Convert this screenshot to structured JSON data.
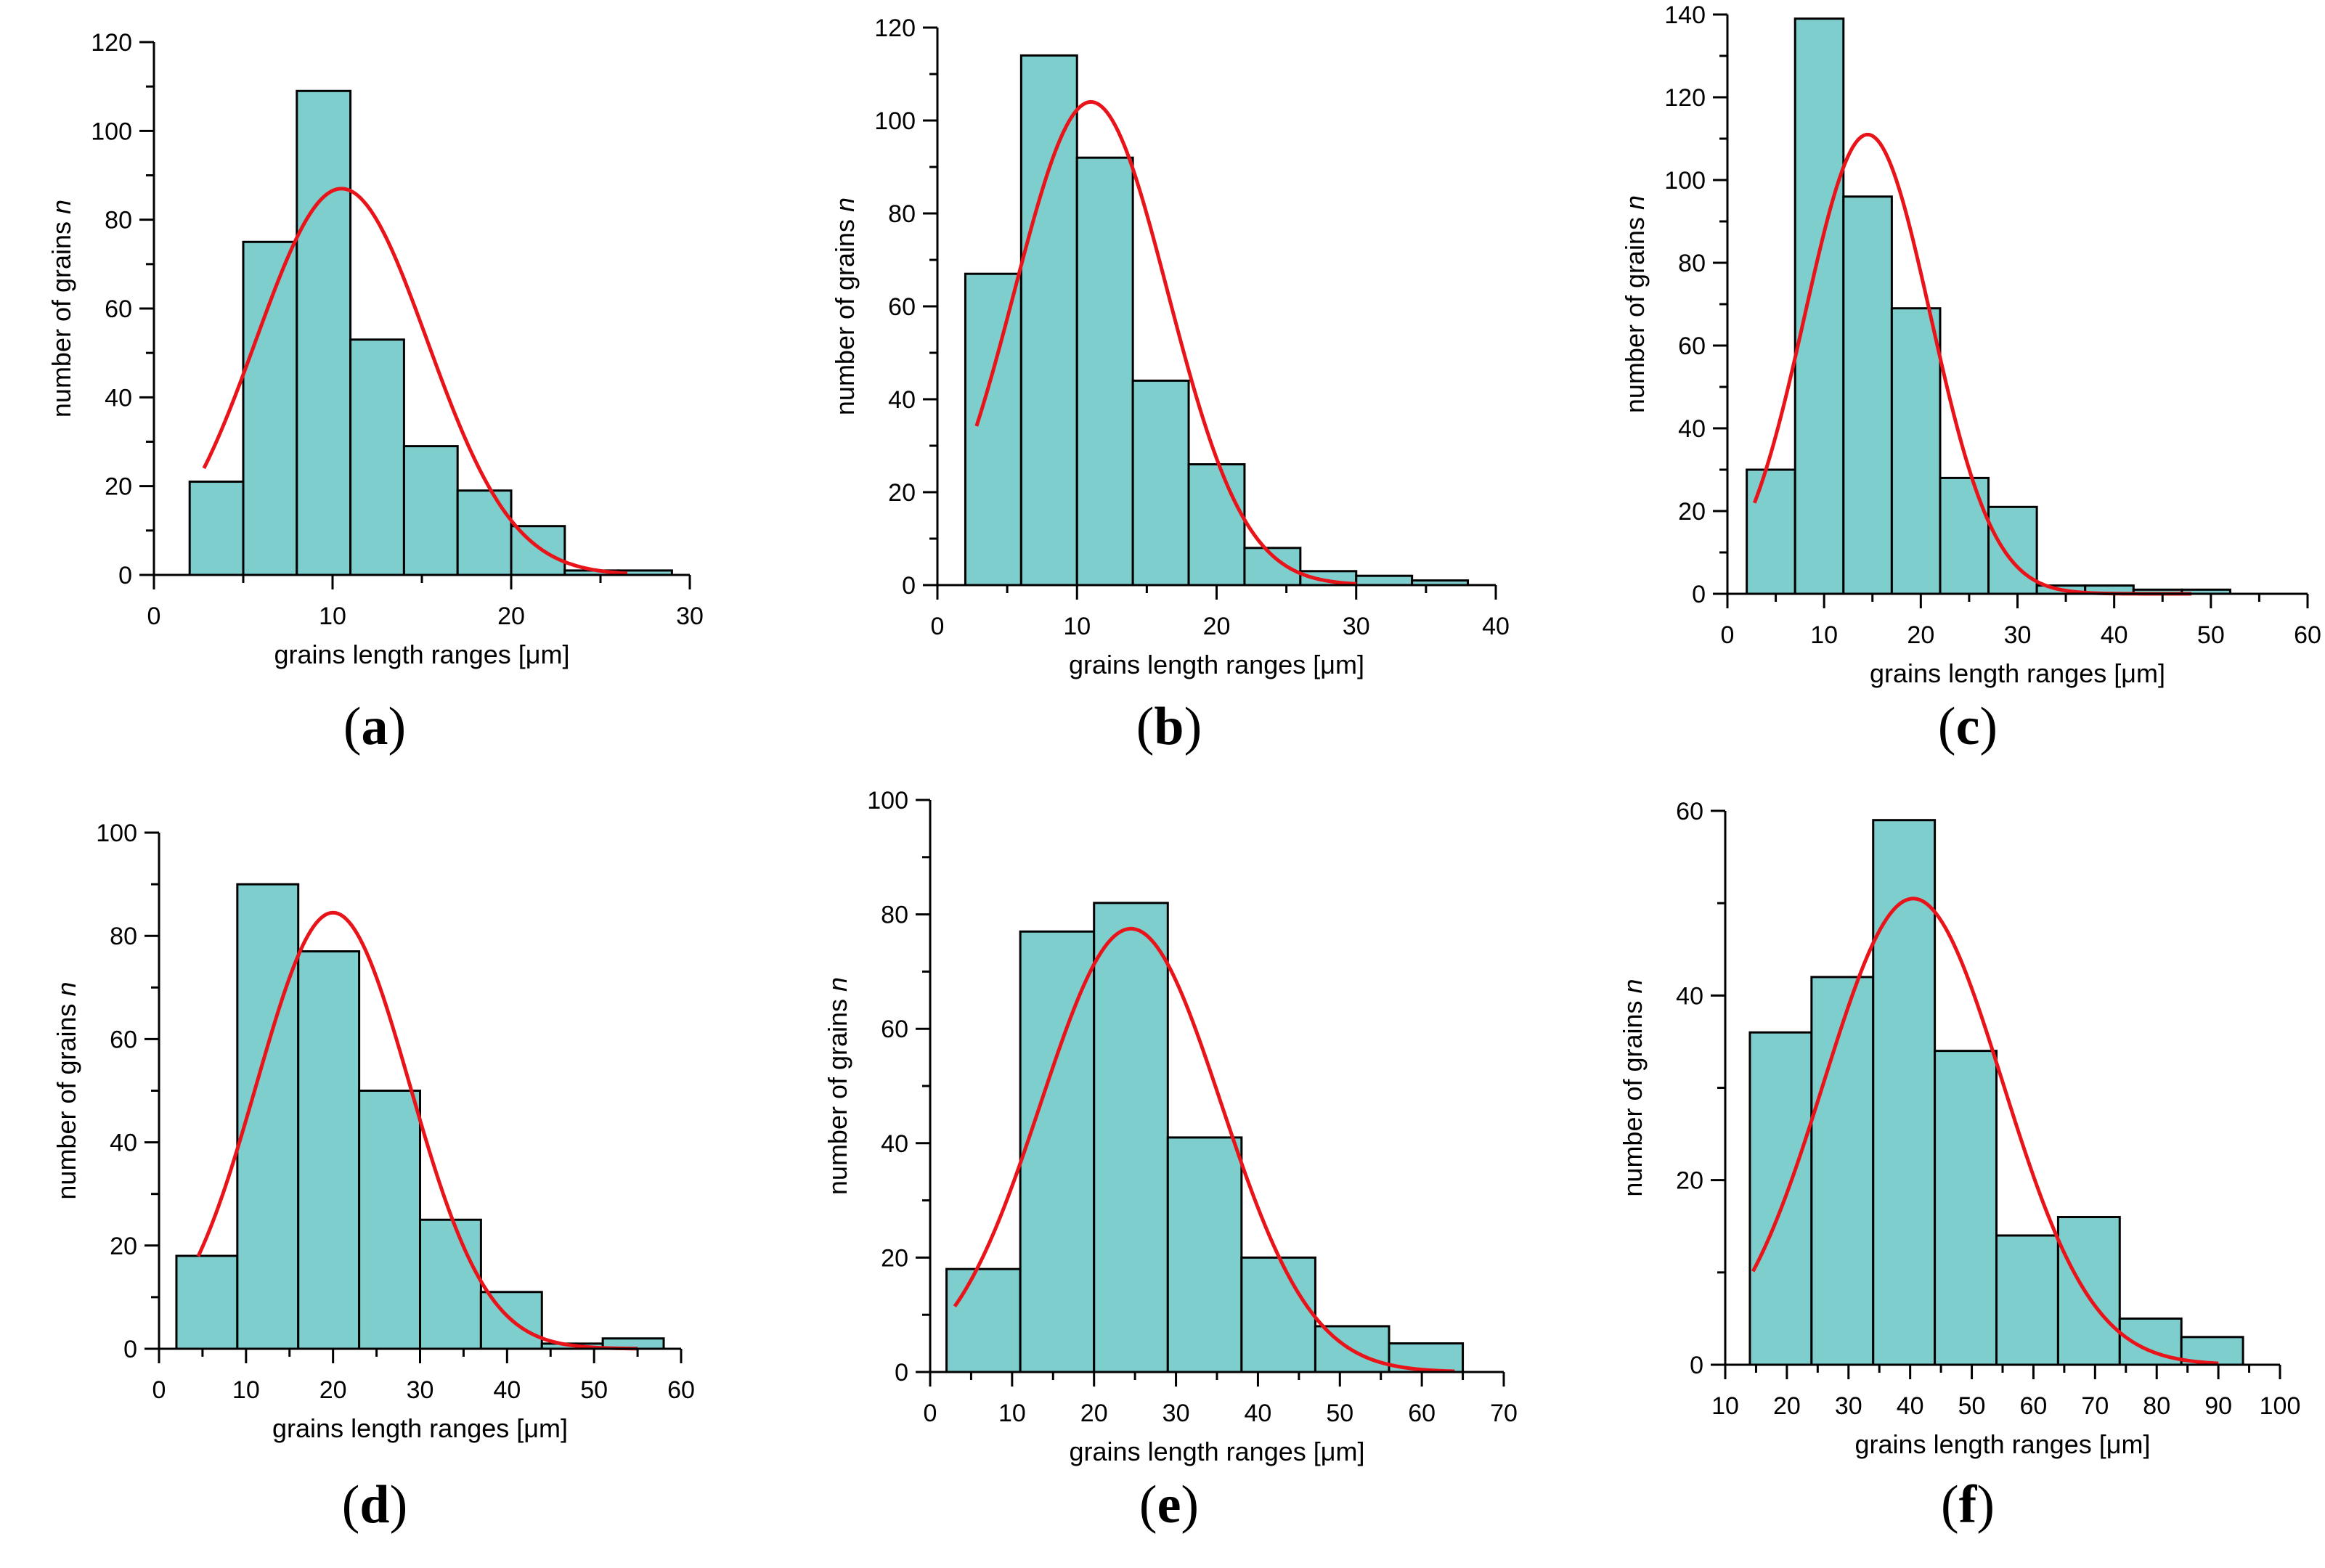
{
  "colors": {
    "bar_fill": "#7ecece",
    "bar_stroke": "#000000",
    "curve": "#e8141a",
    "axis": "#000000"
  },
  "chart_data": [
    {
      "type": "bar",
      "panel_label": "a",
      "xlabel": "grains length ranges [μm]",
      "ylabel": "number of grains n",
      "xlim": [
        0,
        30
      ],
      "ylim": [
        0,
        120
      ],
      "xticks": [
        0,
        10,
        20,
        30
      ],
      "yticks": [
        0,
        20,
        40,
        60,
        80,
        100,
        120
      ],
      "bins": [
        [
          2,
          5
        ],
        [
          5,
          8
        ],
        [
          8,
          11
        ],
        [
          11,
          14
        ],
        [
          14,
          17
        ],
        [
          17,
          20
        ],
        [
          20,
          23
        ],
        [
          23,
          26
        ],
        [
          26,
          29
        ]
      ],
      "values": [
        21,
        75,
        109,
        53,
        29,
        19,
        11,
        1,
        1
      ],
      "fit_curve": {
        "type": "gaussian",
        "peak": 87,
        "mean": 10.5,
        "sigma": 4.8,
        "x_range": [
          2.8,
          26.5
        ]
      },
      "grid": false
    },
    {
      "type": "bar",
      "panel_label": "b",
      "xlabel": "grains length ranges [μm]",
      "ylabel": "number of grains n",
      "xlim": [
        0,
        40
      ],
      "ylim": [
        0,
        120
      ],
      "xticks": [
        0,
        10,
        20,
        30,
        40
      ],
      "yticks": [
        0,
        20,
        40,
        60,
        80,
        100,
        120
      ],
      "bins": [
        [
          2,
          6
        ],
        [
          6,
          10
        ],
        [
          10,
          14
        ],
        [
          14,
          18
        ],
        [
          18,
          22
        ],
        [
          22,
          26
        ],
        [
          26,
          30
        ],
        [
          30,
          34
        ],
        [
          34,
          38
        ]
      ],
      "values": [
        67,
        114,
        92,
        44,
        26,
        8,
        3,
        2,
        1
      ],
      "fit_curve": {
        "type": "gaussian",
        "peak": 104,
        "mean": 11.0,
        "sigma": 5.5,
        "x_range": [
          2.8,
          30
        ]
      },
      "grid": false
    },
    {
      "type": "bar",
      "panel_label": "c",
      "xlabel": "grains length ranges [μm]",
      "ylabel": "number of grains n",
      "xlim": [
        0,
        60
      ],
      "ylim": [
        0,
        140
      ],
      "xticks": [
        0,
        10,
        20,
        30,
        40,
        50,
        60
      ],
      "yticks": [
        0,
        20,
        40,
        60,
        80,
        100,
        120,
        140
      ],
      "bins": [
        [
          2,
          7
        ],
        [
          7,
          12
        ],
        [
          12,
          17
        ],
        [
          17,
          22
        ],
        [
          22,
          27
        ],
        [
          27,
          32
        ],
        [
          32,
          37
        ],
        [
          37,
          42
        ],
        [
          42,
          47
        ],
        [
          47,
          52
        ]
      ],
      "values": [
        30,
        139,
        96,
        69,
        28,
        21,
        2,
        2,
        1,
        1
      ],
      "fit_curve": {
        "type": "gaussian",
        "peak": 111,
        "mean": 14.5,
        "sigma": 6.5,
        "x_range": [
          2.8,
          48
        ]
      },
      "grid": false
    },
    {
      "type": "bar",
      "panel_label": "d",
      "xlabel": "grains length ranges [μm]",
      "ylabel": "number of grains n",
      "xlim": [
        0,
        60
      ],
      "ylim": [
        0,
        100
      ],
      "xticks": [
        0,
        10,
        20,
        30,
        40,
        50,
        60
      ],
      "yticks": [
        0,
        20,
        40,
        60,
        80,
        100
      ],
      "bins": [
        [
          2,
          9
        ],
        [
          9,
          16
        ],
        [
          16,
          23
        ],
        [
          23,
          30
        ],
        [
          30,
          37
        ],
        [
          37,
          44
        ],
        [
          44,
          51
        ],
        [
          51,
          58
        ]
      ],
      "values": [
        18,
        90,
        77,
        50,
        25,
        11,
        1,
        2
      ],
      "fit_curve": {
        "type": "gaussian",
        "peak": 84.5,
        "mean": 20.0,
        "sigma": 8.8,
        "x_range": [
          4.5,
          55
        ]
      },
      "grid": false
    },
    {
      "type": "bar",
      "panel_label": "e",
      "xlabel": "grains length ranges [μm]",
      "ylabel": "number of grains n",
      "xlim": [
        0,
        70
      ],
      "ylim": [
        0,
        100
      ],
      "xticks": [
        0,
        10,
        20,
        30,
        40,
        50,
        60,
        70
      ],
      "yticks": [
        0,
        20,
        40,
        60,
        80,
        100
      ],
      "bins": [
        [
          2,
          11
        ],
        [
          11,
          20
        ],
        [
          20,
          29
        ],
        [
          29,
          38
        ],
        [
          38,
          47
        ],
        [
          47,
          56
        ],
        [
          56,
          65
        ]
      ],
      "values": [
        18,
        77,
        82,
        41,
        20,
        8,
        5
      ],
      "fit_curve": {
        "type": "gaussian",
        "peak": 77.5,
        "mean": 24.5,
        "sigma": 11.0,
        "x_range": [
          3,
          64
        ]
      },
      "grid": false
    },
    {
      "type": "bar",
      "panel_label": "f",
      "xlabel": "grains length ranges [μm]",
      "ylabel": "number of grains n",
      "xlim": [
        10,
        100
      ],
      "ylim": [
        0,
        60
      ],
      "xticks": [
        10,
        20,
        30,
        40,
        50,
        60,
        70,
        80,
        90,
        100
      ],
      "yticks": [
        0,
        20,
        40,
        60
      ],
      "bins": [
        [
          14,
          24
        ],
        [
          24,
          34
        ],
        [
          34,
          44
        ],
        [
          44,
          54
        ],
        [
          54,
          64
        ],
        [
          64,
          74
        ],
        [
          74,
          84
        ],
        [
          84,
          94
        ]
      ],
      "values": [
        36,
        42,
        59,
        34,
        14,
        16,
        5,
        3
      ],
      "fit_curve": {
        "type": "gaussian",
        "peak": 50.5,
        "mean": 40.5,
        "sigma": 14.5,
        "x_range": [
          14.5,
          90
        ]
      },
      "grid": false
    }
  ]
}
